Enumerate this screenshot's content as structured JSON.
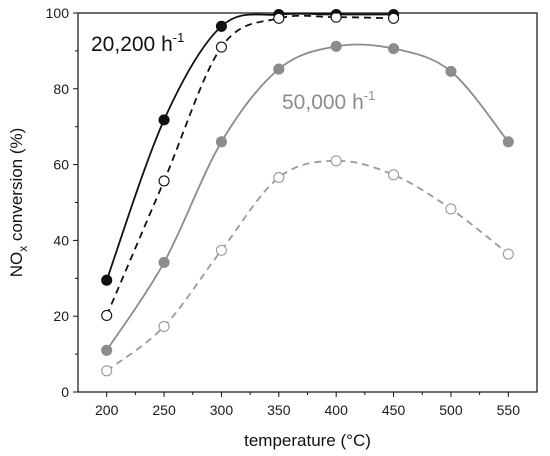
{
  "chart_data": {
    "type": "scatter",
    "title": "",
    "xlabel": "temperature (°C)",
    "ylabel_main": "NO",
    "ylabel_sub": "x",
    "ylabel_rest": " conversion (%)",
    "xlim": [
      175,
      575
    ],
    "ylim": [
      0,
      100
    ],
    "xticks": [
      200,
      250,
      300,
      350,
      400,
      450,
      500,
      550
    ],
    "yticks": [
      0,
      20,
      40,
      60,
      80,
      100
    ],
    "grid": false,
    "annotations": [
      {
        "base": "20,200 h",
        "sup": "-1",
        "color": "#111111"
      },
      {
        "base": "50,000 h",
        "sup": "-1",
        "color": "#8c8c8c"
      }
    ],
    "series": [
      {
        "x": [
          200,
          250,
          300,
          350,
          400,
          450
        ],
        "y": [
          29.5,
          71.8,
          96.5,
          99.6,
          99.6,
          99.6
        ],
        "color": "#111111",
        "marker": "filled",
        "line": "solid"
      },
      {
        "x": [
          200,
          250,
          300,
          350,
          400,
          450
        ],
        "y": [
          20.2,
          55.7,
          91.0,
          98.6,
          98.9,
          98.6
        ],
        "color": "#111111",
        "marker": "open",
        "line": "dashed"
      },
      {
        "x": [
          200,
          250,
          300,
          350,
          400,
          450,
          500,
          550
        ],
        "y": [
          11.0,
          34.2,
          66.0,
          85.2,
          91.2,
          90.6,
          84.6,
          66.0
        ],
        "color": "#8c8c8c",
        "marker": "filled",
        "line": "solid"
      },
      {
        "x": [
          200,
          250,
          300,
          350,
          400,
          450,
          500,
          550
        ],
        "y": [
          5.6,
          17.3,
          37.4,
          56.6,
          61.0,
          57.3,
          48.3,
          36.4
        ],
        "color": "#9a9a9a",
        "marker": "open",
        "line": "dashed"
      }
    ]
  }
}
